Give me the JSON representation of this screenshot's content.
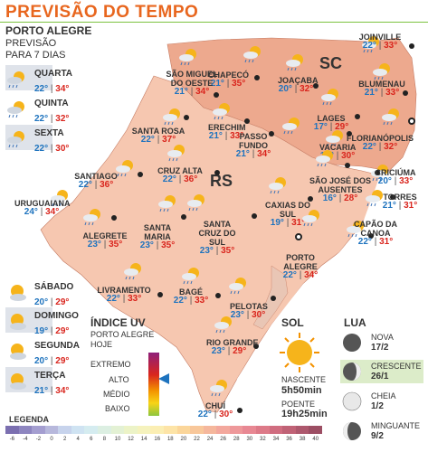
{
  "header": {
    "title": "PREVISÃO DO TEMPO"
  },
  "city_panel": {
    "city": "PORTO ALEGRE",
    "subtitle_l1": "PREVISÃO",
    "subtitle_l2": "PARA 7 DIAS"
  },
  "days": [
    {
      "label": "QUARTA",
      "min": "22°",
      "max": "34°",
      "icon": "sun-rain-icon"
    },
    {
      "label": "QUINTA",
      "min": "22°",
      "max": "32°",
      "icon": "sun-rain-icon"
    },
    {
      "label": "SEXTA",
      "min": "22°",
      "max": "30°",
      "icon": "sun-rain-icon"
    },
    {
      "label": "SÁBADO",
      "min": "20°",
      "max": "29°",
      "icon": "sun-cloud-icon"
    },
    {
      "label": "DOMINGO",
      "min": "19°",
      "max": "29°",
      "icon": "sun-cloud-icon"
    },
    {
      "label": "SEGUNDA",
      "min": "20°",
      "max": "29°",
      "icon": "sun-cloud-icon"
    },
    {
      "label": "TERÇA",
      "min": "21°",
      "max": "34°",
      "icon": "sun-cloud-icon"
    }
  ],
  "map": {
    "state_sc": "SC",
    "state_rs": "RS",
    "cities": [
      {
        "name": "JOINVILLE",
        "min": "22°",
        "max": "33°"
      },
      {
        "name": "BLUMENAU",
        "min": "21°",
        "max": "33°"
      },
      {
        "name": "FLORIANÓPOLIS",
        "min": "22°",
        "max": "32°"
      },
      {
        "name": "CRICIÚMA",
        "min": "20°",
        "max": "33°"
      },
      {
        "name": "TORRES",
        "min": "21°",
        "max": "31°"
      },
      {
        "name": "CAPÃO DA CANOA",
        "min": "22°",
        "max": "31°"
      },
      {
        "name": "LAGES",
        "min": "17°",
        "max": "29°"
      },
      {
        "name": "JOAÇABA",
        "min": "20°",
        "max": "32°"
      },
      {
        "name": "CHAPECÓ",
        "min": "21°",
        "max": "35°"
      },
      {
        "name": "SÃO MIGUEL DO OESTE",
        "min": "21°",
        "max": "34°"
      },
      {
        "name": "ERECHIM",
        "min": "21°",
        "max": "33°"
      },
      {
        "name": "SANTA ROSA",
        "min": "22°",
        "max": "37°"
      },
      {
        "name": "PASSO FUNDO",
        "min": "21°",
        "max": "34°"
      },
      {
        "name": "VACARIA",
        "min": "17°",
        "max": "30°"
      },
      {
        "name": "SÃO JOSÉ DOS AUSENTES",
        "min": "16°",
        "max": "28°"
      },
      {
        "name": "CAXIAS DO SUL",
        "min": "19°",
        "max": "31°"
      },
      {
        "name": "PORTO ALEGRE",
        "min": "22°",
        "max": "34°"
      },
      {
        "name": "SANTIAGO",
        "min": "22°",
        "max": "36°"
      },
      {
        "name": "CRUZ ALTA",
        "min": "22°",
        "max": "36°"
      },
      {
        "name": "URUGUAIANA",
        "min": "24°",
        "max": "34°"
      },
      {
        "name": "ALEGRETE",
        "min": "23°",
        "max": "35°"
      },
      {
        "name": "SANTA MARIA",
        "min": "23°",
        "max": "35°"
      },
      {
        "name": "SANTA CRUZ DO SUL",
        "min": "23°",
        "max": "35°"
      },
      {
        "name": "LIVRAMENTO",
        "min": "22°",
        "max": "33°"
      },
      {
        "name": "BAGÉ",
        "min": "22°",
        "max": "33°"
      },
      {
        "name": "PELOTAS",
        "min": "23°",
        "max": "30°"
      },
      {
        "name": "RIO GRANDE",
        "min": "23°",
        "max": "29°"
      },
      {
        "name": "CHUÍ",
        "min": "22°",
        "max": "30°"
      }
    ]
  },
  "uv": {
    "title": "ÍNDICE UV",
    "subtitle": "PORTO ALEGRE HOJE",
    "levels": [
      "EXTREMO",
      "ALTO",
      "MÉDIO",
      "BAIXO"
    ],
    "current_level": "ALTO",
    "colors": [
      "#8e1f7a",
      "#d9251d",
      "#f39200",
      "#f7d417",
      "#8cc63f"
    ]
  },
  "sun": {
    "title": "SOL",
    "sunrise_label": "NASCENTE",
    "sunrise": "5h50min",
    "sunset_label": "POENTE",
    "sunset": "19h25min"
  },
  "moon": {
    "title": "LUA",
    "phases": [
      {
        "name": "NOVA",
        "date": "17/2"
      },
      {
        "name": "CRESCENTE",
        "date": "26/1"
      },
      {
        "name": "CHEIA",
        "date": "1/2"
      },
      {
        "name": "MINGUANTE",
        "date": "9/2"
      }
    ],
    "highlighted": "CRESCENTE"
  },
  "legend": {
    "title": "LEGENDA",
    "ticks": [
      "-6",
      "-4",
      "-2",
      "0",
      "2",
      "4",
      "6",
      "8",
      "10",
      "12",
      "14",
      "16",
      "18",
      "20",
      "22",
      "24",
      "26",
      "28",
      "30",
      "32",
      "34",
      "36",
      "38",
      "40"
    ],
    "colors": [
      "#7b6fb0",
      "#8e86c0",
      "#a49ed0",
      "#b7b8dc",
      "#c7d3ec",
      "#cfe3f2",
      "#d5ecf0",
      "#dcefe2",
      "#e3f1d4",
      "#ecf3c7",
      "#f5f2bd",
      "#fbeeb3",
      "#fde4a7",
      "#fbd69a",
      "#f8c79a",
      "#f5b79c",
      "#f3a89d",
      "#ee989a",
      "#e88893",
      "#dd7a88",
      "#d06d80",
      "#c06276",
      "#ad586d",
      "#9c4e63"
    ]
  }
}
